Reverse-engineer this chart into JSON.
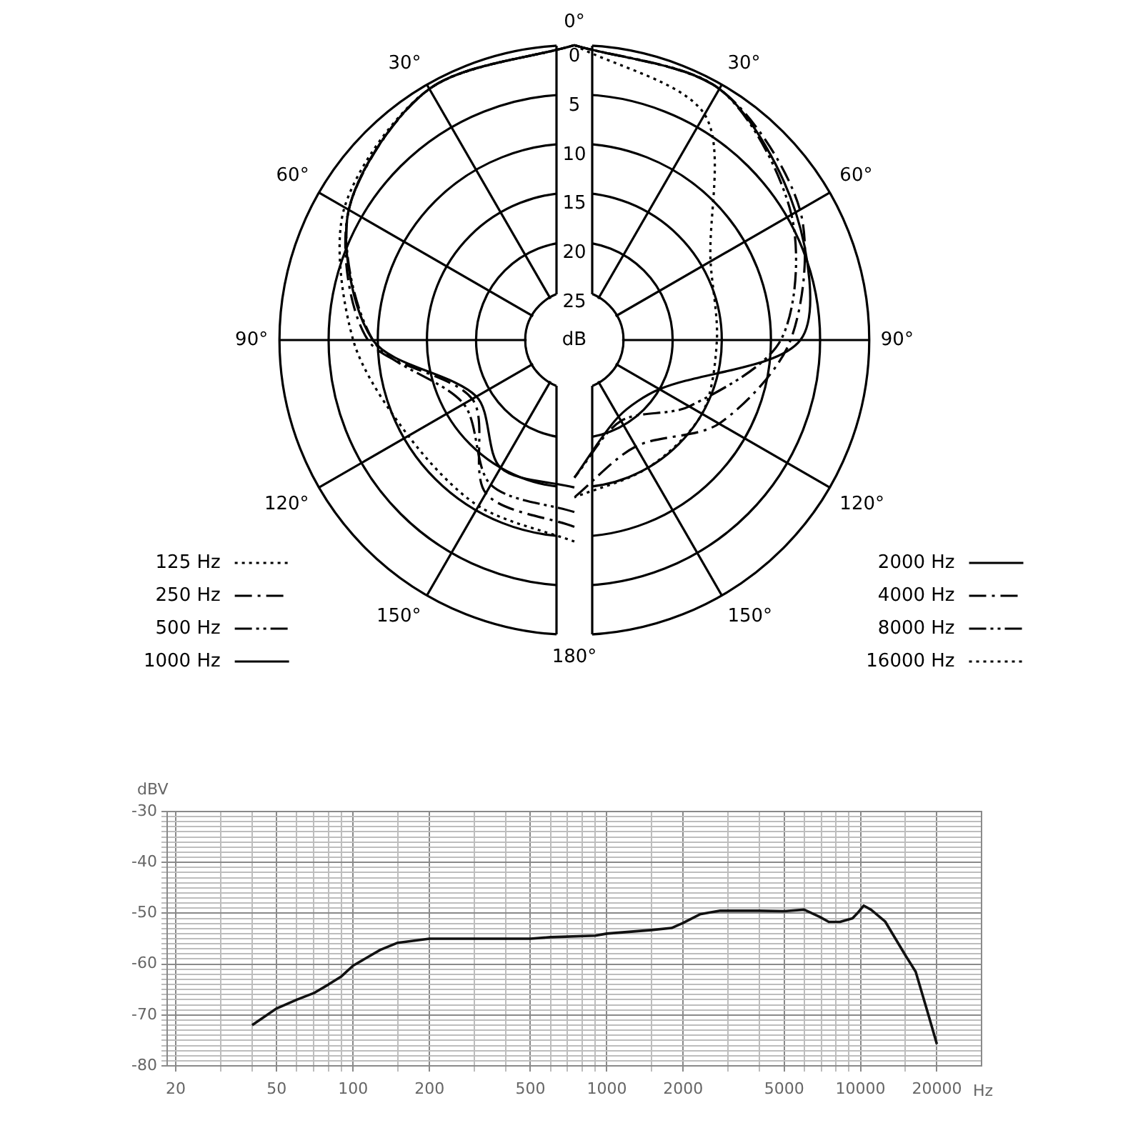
{
  "chart_data": [
    {
      "type": "radar",
      "categories": [
        "0°",
        "30°",
        "60°",
        "90°",
        "120°",
        "150°",
        "180°",
        "150°",
        "120°",
        "90°",
        "60°",
        "30°"
      ],
      "ylabel": "dB",
      "ylim": [
        30,
        0
      ],
      "yticks": [
        0,
        5,
        10,
        15,
        20,
        25
      ],
      "grid": true,
      "legend": "bottom",
      "series": [
        {
          "name": "125 Hz",
          "color": "#000000",
          "line_style": "dotted",
          "values": [
            0,
            null,
            null,
            null,
            null,
            null,
            9.5,
            10.5,
            10.5,
            7.5,
            3,
            0.5
          ]
        },
        {
          "name": "250 Hz",
          "color": "#000000",
          "line_style": "dashdot",
          "values": [
            0,
            null,
            null,
            null,
            null,
            null,
            11,
            12,
            18,
            9,
            3.5,
            0.5
          ]
        },
        {
          "name": "500 Hz",
          "color": "#000000",
          "line_style": "dashdotdot",
          "values": [
            0,
            null,
            null,
            null,
            null,
            null,
            12.5,
            13,
            17,
            9.5,
            3.5,
            0.5
          ]
        },
        {
          "name": "1000 Hz",
          "color": "#000000",
          "line_style": "solid",
          "values": [
            0,
            null,
            null,
            null,
            null,
            null,
            15,
            15,
            18.5,
            9.5,
            3.5,
            0.5
          ]
        },
        {
          "name": "2000 Hz",
          "color": "#000000",
          "line_style": "solid",
          "values": [
            0,
            0.5,
            4,
            7,
            20,
            21,
            16,
            null,
            null,
            null,
            null,
            null
          ]
        },
        {
          "name": "4000 Hz",
          "color": "#000000",
          "line_style": "dashdot",
          "values": [
            0,
            0.5,
            3.5,
            8,
            13,
            17.5,
            14,
            null,
            null,
            null,
            null,
            null
          ]
        },
        {
          "name": "8000 Hz",
          "color": "#000000",
          "line_style": "dashdotdot",
          "values": [
            0,
            0.5,
            4.5,
            9,
            16.5,
            20.5,
            16,
            null,
            null,
            null,
            null,
            null
          ]
        },
        {
          "name": "16000 Hz",
          "color": "#000000",
          "line_style": "dotted",
          "values": [
            0,
            3.5,
            14,
            15.5,
            15,
            15,
            14,
            null,
            null,
            null,
            null,
            null
          ]
        }
      ]
    },
    {
      "type": "line",
      "xlabel": "Hz",
      "ylabel": "dBV",
      "log": "x",
      "grid": true,
      "color": "#111111",
      "x": [
        40,
        50,
        60,
        70,
        80,
        90,
        100,
        128,
        150,
        200,
        300,
        400,
        500,
        600,
        900,
        1000,
        1500,
        1800,
        2000,
        2330,
        2800,
        4000,
        5000,
        6000,
        6900,
        7500,
        8300,
        9300,
        9800,
        10300,
        11000,
        12500,
        15000,
        16500,
        18500,
        20000
      ],
      "values": [
        -72,
        -68.7,
        -67,
        -65.7,
        -64,
        -62.4,
        -60.3,
        -57.2,
        -55.8,
        -55,
        -55,
        -55,
        -55,
        -54.7,
        -54.4,
        -54,
        -53.3,
        -52.9,
        -51.9,
        -50.2,
        -49.5,
        -49.5,
        -49.6,
        -49.3,
        -50.7,
        -51.7,
        -51.7,
        -51,
        -49.8,
        -48.5,
        -49.3,
        -51.6,
        -58.2,
        -61.5,
        -69.9,
        -75.7
      ],
      "xlim": [
        18.5,
        30000
      ],
      "ylim": [
        -80,
        -30
      ],
      "xticks": [
        20,
        {
          "value": 30,
          "label": null
        },
        {
          "value": 40,
          "label": null
        },
        50,
        {
          "value": 60,
          "label": null
        },
        {
          "value": 70,
          "label": null
        },
        {
          "value": 80,
          "label": null
        },
        {
          "value": 90,
          "label": null
        },
        100,
        {
          "value": 150,
          "label": null
        },
        200,
        {
          "value": 300,
          "label": null
        },
        {
          "value": 400,
          "label": null
        },
        500,
        {
          "value": 600,
          "label": null
        },
        {
          "value": 700,
          "label": null
        },
        {
          "value": 800,
          "label": null
        },
        {
          "value": 900,
          "label": null
        },
        1000,
        {
          "value": 1500,
          "label": null
        },
        2000,
        {
          "value": 3000,
          "label": null
        },
        {
          "value": 4000,
          "label": null
        },
        5000,
        {
          "value": 6000,
          "label": null
        },
        {
          "value": 7000,
          "label": null
        },
        {
          "value": 8000,
          "label": null
        },
        {
          "value": 9000,
          "label": null
        },
        10000,
        {
          "value": 15000,
          "label": null
        },
        20000
      ],
      "yticks": [
        -80,
        {
          "value": -79,
          "label": null
        },
        {
          "value": -78,
          "label": null
        },
        {
          "value": -77,
          "label": null
        },
        {
          "value": -76,
          "label": null
        },
        {
          "value": -75,
          "label": null
        },
        {
          "value": -74,
          "label": null
        },
        {
          "value": -73,
          "label": null
        },
        {
          "value": -72,
          "label": null
        },
        {
          "value": -71,
          "label": null
        },
        -70,
        {
          "value": -69,
          "label": null
        },
        {
          "value": -68,
          "label": null
        },
        {
          "value": -67,
          "label": null
        },
        {
          "value": -66,
          "label": null
        },
        {
          "value": -65,
          "label": null
        },
        {
          "value": -64,
          "label": null
        },
        {
          "value": -63,
          "label": null
        },
        {
          "value": -62,
          "label": null
        },
        {
          "value": -61,
          "label": null
        },
        -60,
        {
          "value": -59,
          "label": null
        },
        {
          "value": -58,
          "label": null
        },
        {
          "value": -57,
          "label": null
        },
        {
          "value": -56,
          "label": null
        },
        {
          "value": -55,
          "label": null
        },
        {
          "value": -54,
          "label": null
        },
        {
          "value": -53,
          "label": null
        },
        {
          "value": -52,
          "label": null
        },
        {
          "value": -51,
          "label": null
        },
        -50,
        {
          "value": -49,
          "label": null
        },
        {
          "value": -48,
          "label": null
        },
        {
          "value": -47,
          "label": null
        },
        {
          "value": -46,
          "label": null
        },
        {
          "value": -45,
          "label": null
        },
        {
          "value": -44,
          "label": null
        },
        {
          "value": -43,
          "label": null
        },
        {
          "value": -42,
          "label": null
        },
        {
          "value": -41,
          "label": null
        },
        -40,
        {
          "value": -39,
          "label": null
        },
        {
          "value": -38,
          "label": null
        },
        {
          "value": -37,
          "label": null
        },
        {
          "value": -36,
          "label": null
        },
        {
          "value": -35,
          "label": null
        },
        {
          "value": -34,
          "label": null
        },
        {
          "value": -33,
          "label": null
        },
        {
          "value": -32,
          "label": null
        },
        {
          "value": -31,
          "label": null
        },
        -30
      ]
    }
  ]
}
